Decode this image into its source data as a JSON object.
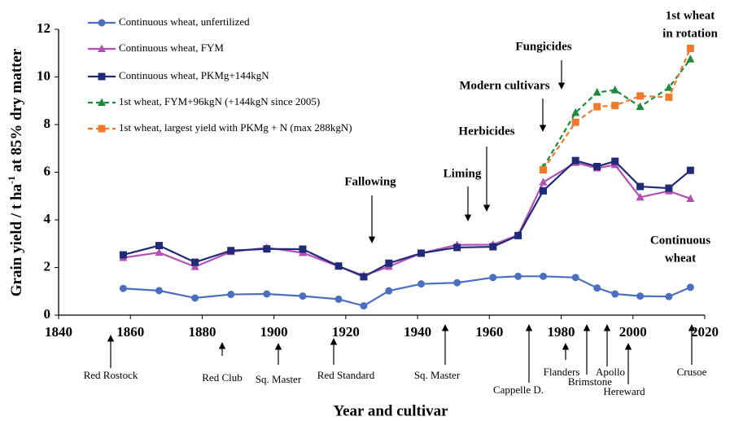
{
  "chart_data": {
    "type": "line",
    "x_label": "Year and cultivar",
    "y_label": [
      "Grain yield / t ha",
      "-1",
      " at 85% dry matter"
    ],
    "x": [
      1858,
      1868,
      1878,
      1888,
      1898,
      1908,
      1918,
      1925,
      1932,
      1941,
      1951,
      1961,
      1968,
      1975,
      1984,
      1990,
      1995,
      2002,
      2010,
      2016
    ],
    "series": [
      {
        "name": "Continuous wheat, unfertilized",
        "color": "#4a6fbf",
        "marker": "circle",
        "dash": false,
        "values": [
          1.12,
          1.03,
          0.72,
          0.87,
          0.89,
          0.8,
          0.67,
          0.39,
          1.02,
          1.31,
          1.36,
          1.58,
          1.63,
          1.63,
          1.58,
          1.14,
          0.89,
          0.8,
          0.78,
          1.17
        ]
      },
      {
        "name": "Continuous wheat, FYM",
        "color": "#b44fb3",
        "marker": "triangle",
        "dash": false,
        "values": [
          2.41,
          2.63,
          2.03,
          2.66,
          2.83,
          2.62,
          2.05,
          1.66,
          2.04,
          2.6,
          2.95,
          2.96,
          3.36,
          5.58,
          6.4,
          6.17,
          6.31,
          4.95,
          5.21,
          4.89
        ]
      },
      {
        "name": "Continuous wheat, PKMg+144kgN",
        "color": "#1f2a78",
        "marker": "square",
        "dash": false,
        "values": [
          2.53,
          2.92,
          2.22,
          2.71,
          2.78,
          2.77,
          2.06,
          1.61,
          2.18,
          2.6,
          2.84,
          2.87,
          3.34,
          5.22,
          6.49,
          6.24,
          6.46,
          5.4,
          5.33,
          6.08
        ]
      },
      {
        "name": "1st wheat, FYM+96kgN (+144kgN since 2005)",
        "color": "#1e8a3c",
        "marker": "triangle",
        "dash": true,
        "values": [
          null,
          null,
          null,
          null,
          null,
          null,
          null,
          null,
          null,
          null,
          null,
          null,
          null,
          6.2,
          8.5,
          9.35,
          9.45,
          8.75,
          9.55,
          10.75
        ]
      },
      {
        "name": "1st wheat, largest yield with PKMg + N (max 288kgN)",
        "color": "#f07a2a",
        "marker": "square",
        "dash": true,
        "values": [
          null,
          null,
          null,
          null,
          null,
          null,
          null,
          null,
          null,
          null,
          null,
          null,
          null,
          6.1,
          8.1,
          8.75,
          8.8,
          9.2,
          9.15,
          11.2
        ]
      }
    ],
    "xlim": [
      1840,
      2020
    ],
    "xticks": [
      1840,
      1860,
      1880,
      1900,
      1920,
      1940,
      1960,
      1980,
      2000,
      2020
    ],
    "ylim": [
      0,
      12
    ],
    "yticks": [
      0,
      2,
      4,
      6,
      8,
      10,
      12
    ],
    "annotations": [
      [
        "Fallowing"
      ],
      [
        "Liming"
      ],
      [
        "Herbicides"
      ],
      [
        "Modern cultivars"
      ],
      [
        "Fungicides"
      ],
      [
        "1st wheat",
        "in rotation"
      ],
      [
        "Continuous",
        "wheat"
      ]
    ],
    "cultivars": [
      "Red Rostock",
      "Red Club",
      "Sq. Master",
      "Red Standard",
      "Sq. Master",
      "Cappelle D.",
      "Flanders",
      "Brimstone",
      "Apollo",
      "Hereward",
      "Crusoe"
    ]
  }
}
